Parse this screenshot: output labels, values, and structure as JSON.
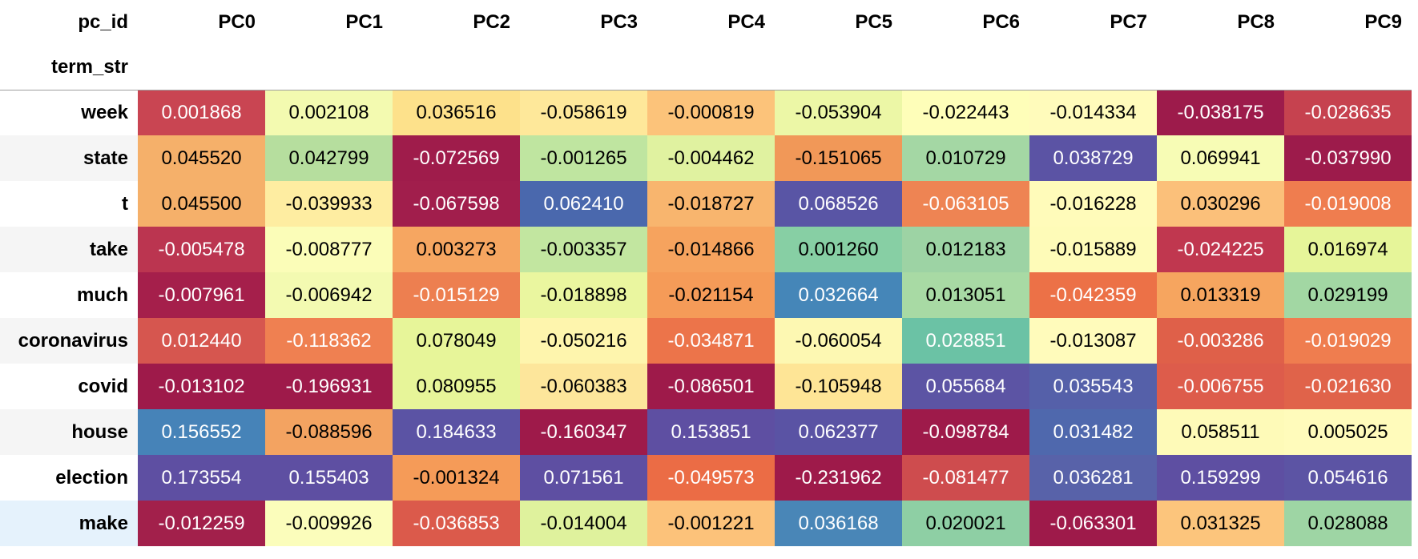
{
  "header": {
    "index_name": "pc_id",
    "row_index_name": "term_str",
    "columns": [
      "PC0",
      "PC1",
      "PC2",
      "PC3",
      "PC4",
      "PC5",
      "PC6",
      "PC7",
      "PC8",
      "PC9"
    ]
  },
  "rows": [
    {
      "term": "week",
      "values": [
        "0.001868",
        "0.002108",
        "0.036516",
        "-0.058619",
        "-0.000819",
        "-0.053904",
        "-0.022443",
        "-0.014334",
        "-0.038175",
        "-0.028635"
      ],
      "bg": [
        "#c94552",
        "#f3fab0",
        "#fde18b",
        "#fee89a",
        "#fcc37a",
        "#ecf7a6",
        "#fefeb9",
        "#fffbbb",
        "#9d1b4b",
        "#c6424f"
      ],
      "fg": [
        "#ffffff",
        "#000000",
        "#000000",
        "#000000",
        "#000000",
        "#000000",
        "#000000",
        "#000000",
        "#ffffff",
        "#ffffff"
      ]
    },
    {
      "term": "state",
      "values": [
        "0.045520",
        "0.042799",
        "-0.072569",
        "-0.001265",
        "-0.004462",
        "-0.151065",
        "0.010729",
        "0.038729",
        "0.069941",
        "-0.037990"
      ],
      "bg": [
        "#f5b06a",
        "#b6de9e",
        "#9f1c4b",
        "#bfe5a0",
        "#e0f2a0",
        "#f19858",
        "#a4d7a4",
        "#5b53a4",
        "#f7fcb5",
        "#9d1b4b"
      ],
      "fg": [
        "#000000",
        "#000000",
        "#ffffff",
        "#000000",
        "#000000",
        "#000000",
        "#000000",
        "#ffffff",
        "#000000",
        "#ffffff"
      ]
    },
    {
      "term": "t",
      "values": [
        "0.045500",
        "-0.039933",
        "-0.067598",
        "0.062410",
        "-0.018727",
        "0.068526",
        "-0.063105",
        "-0.016228",
        "0.030296",
        "-0.019008"
      ],
      "bg": [
        "#f5b06a",
        "#feeda1",
        "#a11e4c",
        "#4a68ad",
        "#f8b56e",
        "#5955a5",
        "#ee8453",
        "#fffbba",
        "#fbc07a",
        "#ef7d4f"
      ],
      "fg": [
        "#000000",
        "#000000",
        "#ffffff",
        "#ffffff",
        "#000000",
        "#ffffff",
        "#ffffff",
        "#000000",
        "#000000",
        "#ffffff"
      ]
    },
    {
      "term": "take",
      "values": [
        "-0.005478",
        "-0.008777",
        "0.003273",
        "-0.003357",
        "-0.014866",
        "0.001260",
        "0.012183",
        "-0.015889",
        "-0.024225",
        "0.016974"
      ],
      "bg": [
        "#bb3550",
        "#fbfdb8",
        "#f6a661",
        "#c2e6a0",
        "#f6a35e",
        "#87cfa4",
        "#9dd3a4",
        "#fefbb8",
        "#c0374f",
        "#e6f599"
      ],
      "fg": [
        "#ffffff",
        "#000000",
        "#000000",
        "#000000",
        "#000000",
        "#000000",
        "#000000",
        "#000000",
        "#ffffff",
        "#000000"
      ]
    },
    {
      "term": "much",
      "values": [
        "-0.007961",
        "-0.006942",
        "-0.015129",
        "-0.018898",
        "-0.021154",
        "0.032664",
        "0.013051",
        "-0.042359",
        "0.013319",
        "0.029199"
      ],
      "bg": [
        "#a51f4b",
        "#f3fab1",
        "#ed7f50",
        "#eaf69f",
        "#f59b58",
        "#4586b8",
        "#a8daa4",
        "#ec7147",
        "#f6a55f",
        "#a2d7a3"
      ],
      "fg": [
        "#ffffff",
        "#000000",
        "#ffffff",
        "#000000",
        "#000000",
        "#ffffff",
        "#000000",
        "#ffffff",
        "#000000",
        "#000000"
      ]
    },
    {
      "term": "coronavirus",
      "values": [
        "0.012440",
        "-0.118362",
        "0.078049",
        "-0.050216",
        "-0.034871",
        "-0.060054",
        "0.028851",
        "-0.013087",
        "-0.003286",
        "-0.019029"
      ],
      "bg": [
        "#d6564f",
        "#ef8051",
        "#e7f599",
        "#fef5ad",
        "#ec744a",
        "#fdf8b2",
        "#6bc2a5",
        "#fffbbb",
        "#df6049",
        "#ef7d4f"
      ],
      "fg": [
        "#ffffff",
        "#ffffff",
        "#000000",
        "#000000",
        "#ffffff",
        "#000000",
        "#ffffff",
        "#000000",
        "#ffffff",
        "#ffffff"
      ]
    },
    {
      "term": "covid",
      "values": [
        "-0.013102",
        "-0.196931",
        "0.080955",
        "-0.060383",
        "-0.086501",
        "-0.105948",
        "0.055684",
        "0.035543",
        "-0.006755",
        "-0.021630"
      ],
      "bg": [
        "#9e1a4a",
        "#9e1a4a",
        "#e7f599",
        "#fde69b",
        "#9e1a4a",
        "#fee596",
        "#5c54a4",
        "#5560a9",
        "#dd5c4b",
        "#e0634a"
      ],
      "fg": [
        "#ffffff",
        "#ffffff",
        "#000000",
        "#000000",
        "#ffffff",
        "#000000",
        "#ffffff",
        "#ffffff",
        "#ffffff",
        "#ffffff"
      ]
    },
    {
      "term": "house",
      "values": [
        "0.156552",
        "-0.088596",
        "0.184633",
        "-0.160347",
        "0.153851",
        "0.062377",
        "-0.098784",
        "0.031482",
        "0.058511",
        "0.005025"
      ],
      "bg": [
        "#4683b8",
        "#f3a361",
        "#5b53a4",
        "#9e1a4a",
        "#5e4fa2",
        "#5a53a4",
        "#9e1a4a",
        "#4f68ad",
        "#fefab8",
        "#fffbbb"
      ],
      "fg": [
        "#ffffff",
        "#000000",
        "#ffffff",
        "#ffffff",
        "#ffffff",
        "#ffffff",
        "#ffffff",
        "#ffffff",
        "#000000",
        "#000000"
      ]
    },
    {
      "term": "election",
      "values": [
        "0.173554",
        "0.155403",
        "-0.001324",
        "0.071561",
        "-0.049573",
        "-0.231962",
        "-0.081477",
        "0.036281",
        "0.159299",
        "0.054616"
      ],
      "bg": [
        "#5e4fa2",
        "#5e4fa2",
        "#f59b58",
        "#5e4fa2",
        "#eb6c45",
        "#9e1a4a",
        "#ce4c4e",
        "#5862a9",
        "#5e4fa2",
        "#5c54a4"
      ],
      "fg": [
        "#ffffff",
        "#ffffff",
        "#000000",
        "#ffffff",
        "#ffffff",
        "#ffffff",
        "#ffffff",
        "#ffffff",
        "#ffffff",
        "#ffffff"
      ]
    },
    {
      "term": "make",
      "values": [
        "-0.012259",
        "-0.009926",
        "-0.036853",
        "-0.014004",
        "-0.001221",
        "0.036168",
        "0.020021",
        "-0.063301",
        "0.031325",
        "0.028088"
      ],
      "bg": [
        "#a2204b",
        "#fbfdbb",
        "#db5a4b",
        "#dff29d",
        "#fcc27a",
        "#4986b7",
        "#8ecfa4",
        "#9e1a4a",
        "#fcc57c",
        "#9ed5a4"
      ],
      "fg": [
        "#ffffff",
        "#000000",
        "#ffffff",
        "#000000",
        "#000000",
        "#ffffff",
        "#000000",
        "#ffffff",
        "#000000",
        "#000000"
      ]
    }
  ]
}
